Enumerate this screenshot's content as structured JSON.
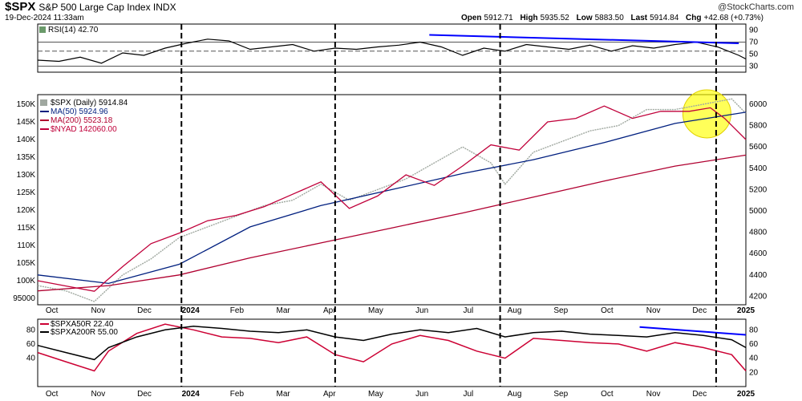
{
  "header": {
    "symbol": "$SPX",
    "description": "S&P 500 Large Cap Index INDX",
    "date": "19-Dec-2024 11:33am",
    "brand": "@StockCharts.com",
    "open_label": "Open",
    "open": "5912.71",
    "high_label": "High",
    "high": "5935.52",
    "low_label": "Low",
    "low": "5883.50",
    "last_label": "Last",
    "last": "5914.84",
    "chg_label": "Chg",
    "chg": "+42.68 (+0.73%)"
  },
  "chart_data": [
    {
      "type": "line",
      "title": "RSI(14) 42.70",
      "ylim": [
        20,
        100
      ],
      "y_ticks": [
        "90",
        "70",
        "50",
        "30"
      ],
      "reference_lines": [
        70,
        55,
        30
      ],
      "series": [
        {
          "name": "RSI(14) 42.70",
          "color": "#000000",
          "x": [
            0,
            0.03,
            0.06,
            0.09,
            0.12,
            0.15,
            0.18,
            0.21,
            0.24,
            0.27,
            0.3,
            0.33,
            0.36,
            0.39,
            0.42,
            0.45,
            0.48,
            0.51,
            0.54,
            0.57,
            0.6,
            0.63,
            0.66,
            0.69,
            0.72,
            0.75,
            0.78,
            0.81,
            0.84,
            0.87,
            0.9,
            0.93,
            0.96,
            0.99,
            1.0
          ],
          "values": [
            40,
            38,
            45,
            35,
            52,
            48,
            60,
            68,
            75,
            72,
            58,
            62,
            66,
            55,
            60,
            58,
            62,
            65,
            70,
            62,
            48,
            60,
            55,
            66,
            62,
            58,
            65,
            55,
            64,
            60,
            66,
            70,
            62,
            48,
            42
          ]
        }
      ],
      "trendline": {
        "color": "#0000ff",
        "from": [
          0.553,
          82
        ],
        "to": [
          0.99,
          68
        ]
      }
    },
    {
      "type": "line",
      "title": "$SPX (Daily) 5914.84",
      "left_axis": [
        "150K",
        "145K",
        "140K",
        "135K",
        "130K",
        "125K",
        "120K",
        "115K",
        "110K",
        "105K",
        "100K",
        "95000"
      ],
      "left_ylim": [
        95000,
        150000
      ],
      "right_axis": [
        "6000",
        "5800",
        "5600",
        "5400",
        "5200",
        "5000",
        "4800",
        "4600",
        "4400",
        "4200"
      ],
      "right_ylim": [
        4120,
        6090
      ],
      "x_labels": [
        "Oct",
        "Nov",
        "Dec",
        "2024",
        "Feb",
        "Mar",
        "Apr",
        "May",
        "Jun",
        "Jul",
        "Aug",
        "Sep",
        "Oct",
        "Nov",
        "Dec",
        "2025"
      ],
      "series": [
        {
          "name": "$SPX (Daily) 5914.84",
          "color": "#a0a8a0",
          "axis": "right",
          "x": [
            0,
            0.04,
            0.08,
            0.12,
            0.16,
            0.2,
            0.24,
            0.28,
            0.32,
            0.36,
            0.4,
            0.44,
            0.48,
            0.52,
            0.56,
            0.6,
            0.64,
            0.66,
            0.7,
            0.74,
            0.78,
            0.82,
            0.86,
            0.9,
            0.94,
            0.98,
            1.0
          ],
          "values": [
            4300,
            4250,
            4150,
            4400,
            4550,
            4750,
            4850,
            4950,
            5050,
            5100,
            5250,
            5100,
            5200,
            5300,
            5450,
            5600,
            5450,
            5250,
            5550,
            5650,
            5750,
            5800,
            5950,
            5950,
            6000,
            6050,
            5915
          ]
        },
        {
          "name": "MA(50) 5924.96",
          "color": "#001f7f",
          "axis": "right",
          "x": [
            0,
            0.1,
            0.2,
            0.3,
            0.4,
            0.5,
            0.6,
            0.7,
            0.8,
            0.9,
            1.0
          ],
          "values": [
            4400,
            4320,
            4500,
            4850,
            5050,
            5200,
            5350,
            5480,
            5640,
            5820,
            5925
          ]
        },
        {
          "name": "MA(200) 5523.18",
          "color": "#b00030",
          "axis": "right",
          "x": [
            0,
            0.1,
            0.2,
            0.3,
            0.4,
            0.5,
            0.6,
            0.7,
            0.8,
            0.9,
            1.0
          ],
          "values": [
            4250,
            4300,
            4400,
            4560,
            4700,
            4840,
            4980,
            5130,
            5280,
            5420,
            5523
          ]
        },
        {
          "name": "$NYAD 142060.00",
          "color": "#c0003a",
          "axis": "left",
          "x": [
            0,
            0.04,
            0.08,
            0.12,
            0.16,
            0.2,
            0.24,
            0.28,
            0.32,
            0.36,
            0.4,
            0.44,
            0.48,
            0.52,
            0.56,
            0.6,
            0.64,
            0.68,
            0.72,
            0.76,
            0.8,
            0.84,
            0.88,
            0.92,
            0.95,
            0.97,
            1.0
          ],
          "values": [
            100000,
            98500,
            97000,
            104000,
            110500,
            113500,
            117000,
            118500,
            121000,
            124500,
            128000,
            120500,
            124000,
            130000,
            127000,
            132500,
            138500,
            137000,
            145000,
            146000,
            149500,
            146000,
            148000,
            148000,
            149000,
            146000,
            140000
          ]
        }
      ],
      "highlight": {
        "shape": "circle",
        "color": "#ffff00",
        "center": [
          0.945,
          5910
        ]
      }
    },
    {
      "type": "line",
      "ylim": [
        0,
        95
      ],
      "left_axis": [
        "80",
        "60",
        "40"
      ],
      "right_axis": [
        "80",
        "60",
        "40",
        "20"
      ],
      "x_labels": [
        "Oct",
        "Nov",
        "Dec",
        "2024",
        "Feb",
        "Mar",
        "Apr",
        "May",
        "Jun",
        "Jul",
        "Aug",
        "Sep",
        "Oct",
        "Nov",
        "Dec",
        "2025"
      ],
      "series": [
        {
          "name": "$SPXA50R 22.40",
          "color": "#cc0033",
          "x": [
            0,
            0.04,
            0.08,
            0.1,
            0.14,
            0.18,
            0.22,
            0.26,
            0.3,
            0.34,
            0.38,
            0.42,
            0.46,
            0.5,
            0.54,
            0.58,
            0.62,
            0.66,
            0.7,
            0.74,
            0.78,
            0.82,
            0.86,
            0.9,
            0.94,
            0.98,
            1.0
          ],
          "values": [
            48,
            35,
            22,
            50,
            75,
            88,
            80,
            70,
            68,
            62,
            70,
            45,
            35,
            60,
            72,
            65,
            50,
            40,
            68,
            65,
            62,
            60,
            50,
            62,
            55,
            45,
            22
          ]
        },
        {
          "name": "$SPXA200R 55.00",
          "color": "#000000",
          "x": [
            0,
            0.04,
            0.08,
            0.1,
            0.14,
            0.18,
            0.22,
            0.26,
            0.3,
            0.34,
            0.38,
            0.42,
            0.46,
            0.5,
            0.54,
            0.58,
            0.62,
            0.66,
            0.7,
            0.74,
            0.78,
            0.82,
            0.86,
            0.9,
            0.94,
            0.98,
            1.0
          ],
          "values": [
            58,
            48,
            38,
            55,
            70,
            80,
            85,
            82,
            78,
            76,
            80,
            70,
            65,
            74,
            80,
            76,
            82,
            70,
            76,
            78,
            74,
            72,
            70,
            76,
            72,
            66,
            55
          ]
        }
      ],
      "trendline": {
        "color": "#0000ff",
        "from": [
          0.85,
          84
        ],
        "to": [
          1.0,
          73
        ]
      }
    }
  ],
  "vertical_markers": [
    0.203,
    0.42,
    0.653,
    0.958
  ]
}
